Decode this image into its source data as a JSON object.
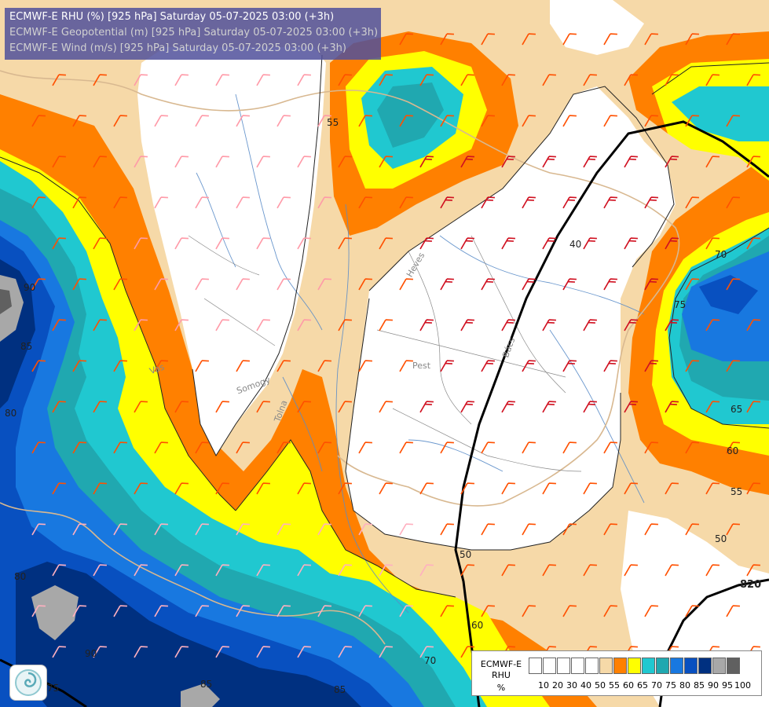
{
  "titles": {
    "line1": "ECMWF-E RHU (%) [925 hPa] Saturday 05-07-2025 03:00 (+3h)",
    "line2": "ECMWF-E Geopotential (m) [925 hPa] Saturday 05-07-2025 03:00 (+3h)",
    "line3": "ECMWF-E Wind (m/s) [925 hPa] Saturday 05-07-2025 03:00 (+3h)"
  },
  "title_colors": {
    "line1": "#ffffff",
    "line2": "#d0d0d0",
    "line3": "#d0d0d0"
  },
  "legend": {
    "model": "ECMWF-E",
    "param": "RHU",
    "unit": "%",
    "ticks": [
      "10",
      "20",
      "30",
      "40",
      "50",
      "55",
      "60",
      "65",
      "70",
      "75",
      "80",
      "85",
      "90",
      "95",
      "100"
    ],
    "colors": [
      "#ffffff",
      "#ffffff",
      "#ffffff",
      "#ffffff",
      "#ffffff",
      "#f6d9a8",
      "#ff8000",
      "#ffff00",
      "#20c8d0",
      "#20a8b0",
      "#1878e0",
      "#0850c0",
      "#003080",
      "#a8a8a8",
      "#606060"
    ]
  },
  "contour_labels": {
    "c40": "40",
    "c50": "50",
    "c50b": "50",
    "c55": "55",
    "c55b": "55",
    "c60": "60",
    "c60b": "60",
    "c65": "65",
    "c70": "70",
    "c70b": "70",
    "c75": "75",
    "c75b": "75",
    "c80": "80",
    "c80b": "80",
    "c85": "85",
    "c85b": "85",
    "c85c": "85",
    "c90": "90",
    "geo820": "820"
  },
  "place_labels": {
    "pest": "Pest",
    "heves": "Heves",
    "vas": "Vas",
    "somogy": "Somogy",
    "tolna": "Tolna",
    "bacs": "Bács"
  },
  "map_colors": {
    "beige": "#f6d9a8",
    "orange": "#ff8000",
    "yellow": "#ffff00",
    "cyan": "#20c8d0",
    "teal": "#20a8b0",
    "blue": "#1878e0",
    "dblue": "#0850c0",
    "navy": "#003080",
    "grey": "#a8a8a8",
    "dgrey": "#606060"
  }
}
